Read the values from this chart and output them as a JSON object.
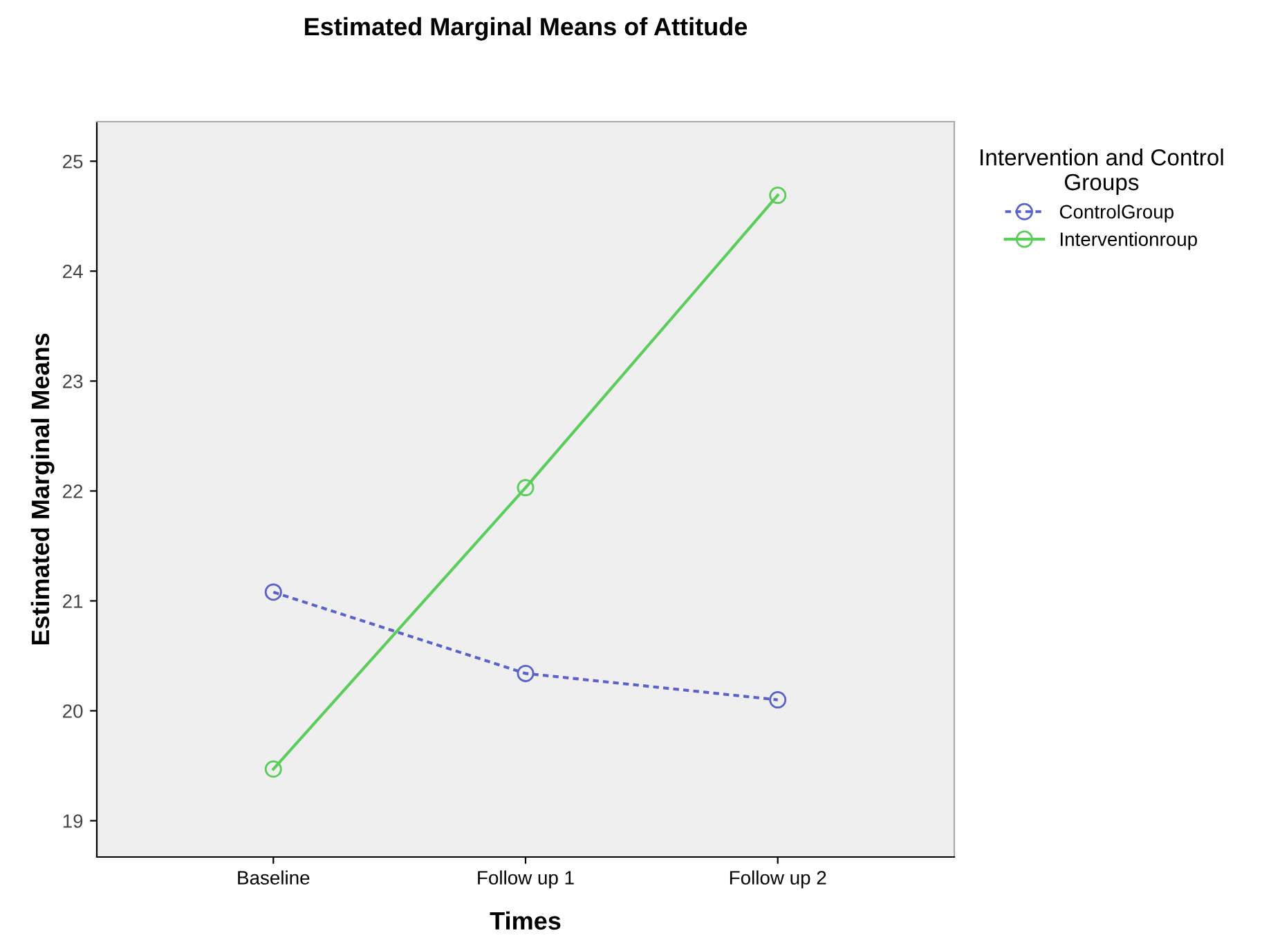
{
  "chart_data": {
    "type": "line",
    "title": "Estimated Marginal Means of Attitude",
    "xlabel": "Times",
    "ylabel": "Estimated Marginal Means",
    "legend_title": "Intervention and Control\nGroups",
    "categories": [
      "Baseline",
      "Follow up 1",
      "Follow up 2"
    ],
    "series": [
      {
        "name": "ControlGroup",
        "color": "#5a64c8",
        "values": [
          21.08,
          20.34,
          20.1
        ],
        "line_style": "dashed"
      },
      {
        "name": "Interventionroup",
        "color": "#5acd5a",
        "values": [
          19.47,
          22.03,
          24.69
        ],
        "line_style": "solid"
      }
    ],
    "ylim": [
      18.67,
      25.36
    ],
    "yticks": [
      19,
      20,
      21,
      22,
      23,
      24,
      25
    ],
    "marker": "circle",
    "grid": false,
    "legend": "top right"
  }
}
